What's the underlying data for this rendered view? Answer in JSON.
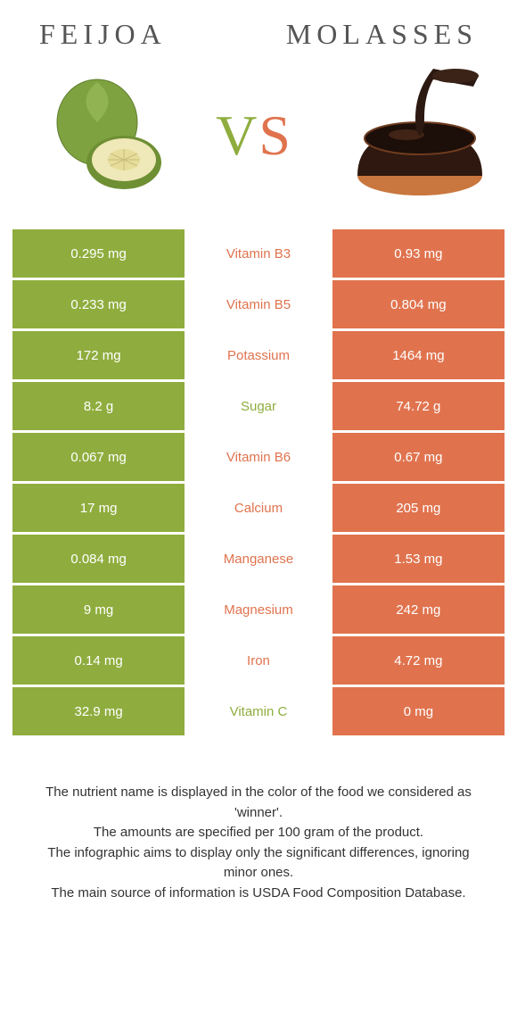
{
  "titles": {
    "left": "Feijoa",
    "right": "Molasses"
  },
  "vs": {
    "v": "V",
    "s": "S"
  },
  "colors": {
    "left_bg": "#8FAD3E",
    "right_bg": "#E0734E",
    "left_text": "#8FAD3E",
    "right_text": "#E0734E",
    "title_color": "#555555"
  },
  "rows": [
    {
      "nutrient": "Vitamin B3",
      "left": "0.295 mg",
      "right": "0.93 mg",
      "winner": "right"
    },
    {
      "nutrient": "Vitamin B5",
      "left": "0.233 mg",
      "right": "0.804 mg",
      "winner": "right"
    },
    {
      "nutrient": "Potassium",
      "left": "172 mg",
      "right": "1464 mg",
      "winner": "right"
    },
    {
      "nutrient": "Sugar",
      "left": "8.2 g",
      "right": "74.72 g",
      "winner": "left"
    },
    {
      "nutrient": "Vitamin B6",
      "left": "0.067 mg",
      "right": "0.67 mg",
      "winner": "right"
    },
    {
      "nutrient": "Calcium",
      "left": "17 mg",
      "right": "205 mg",
      "winner": "right"
    },
    {
      "nutrient": "Manganese",
      "left": "0.084 mg",
      "right": "1.53 mg",
      "winner": "right"
    },
    {
      "nutrient": "Magnesium",
      "left": "9 mg",
      "right": "242 mg",
      "winner": "right"
    },
    {
      "nutrient": "Iron",
      "left": "0.14 mg",
      "right": "4.72 mg",
      "winner": "right"
    },
    {
      "nutrient": "Vitamin C",
      "left": "32.9 mg",
      "right": "0 mg",
      "winner": "left"
    }
  ],
  "footer": {
    "l1": "The nutrient name is displayed in the color of the food we considered as 'winner'.",
    "l2": "The amounts are specified per 100 gram of the product.",
    "l3": "The infographic aims to display only the significant differences, ignoring minor ones.",
    "l4": "The main source of information is USDA Food Composition Database."
  }
}
